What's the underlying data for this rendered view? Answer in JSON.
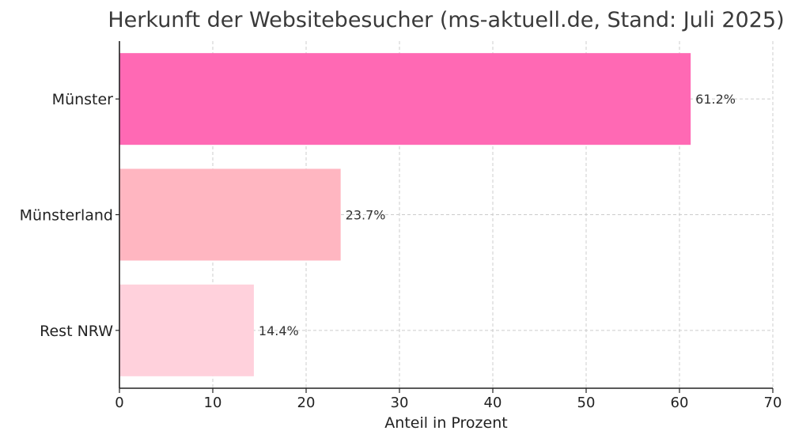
{
  "chart_data": {
    "type": "bar",
    "orientation": "horizontal",
    "title": "Herkunft der Websitebesucher (ms-aktuell.de, Stand: Juli 2025)",
    "xlabel": "Anteil in Prozent",
    "ylabel": "",
    "categories": [
      "Münster",
      "Münsterland",
      "Rest NRW"
    ],
    "values": [
      61.2,
      23.7,
      14.4
    ],
    "value_labels": [
      "61.2%",
      "23.7%",
      "14.4%"
    ],
    "xlim": [
      0,
      70
    ],
    "xticks": [
      0,
      10,
      20,
      30,
      40,
      50,
      60,
      70
    ],
    "xtick_labels": [
      "0",
      "10",
      "20",
      "30",
      "40",
      "50",
      "60",
      "70"
    ],
    "colors": [
      "#ff69b4",
      "#ffb6c1",
      "#ffd1dc"
    ],
    "grid": true,
    "legend": "none"
  }
}
